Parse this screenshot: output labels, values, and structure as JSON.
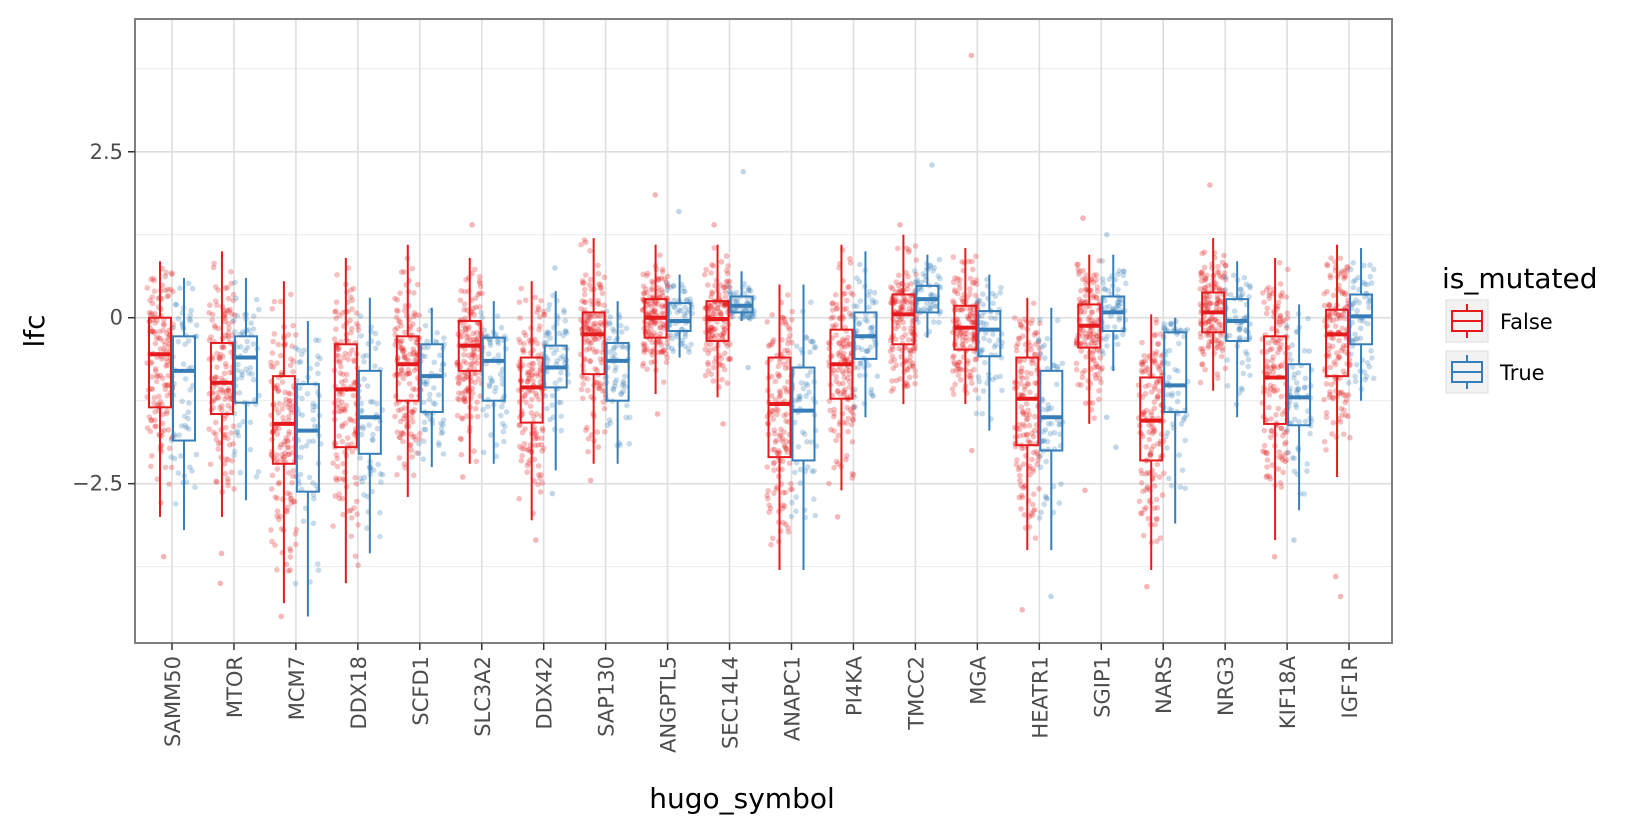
{
  "chart_data": {
    "type": "box",
    "title": "",
    "xlabel": "hugo_symbol",
    "ylabel": "lfc",
    "ylim": [
      -4.9,
      4.5
    ],
    "y_ticks": [
      -2.5,
      0,
      2.5
    ],
    "y_tick_labels": [
      "−2.5",
      "0",
      "2.5"
    ],
    "grid": true,
    "legend": {
      "title": "is_mutated",
      "position": "right"
    },
    "colors": {
      "False": "#e41a1c",
      "True": "#377eb8"
    },
    "categories": [
      "SAMM50",
      "MTOR",
      "MCM7",
      "DDX18",
      "SCFD1",
      "SLC3A2",
      "DDX42",
      "SAP130",
      "ANGPTL5",
      "SEC14L4",
      "ANAPC1",
      "PI4KA",
      "TMCC2",
      "MGA",
      "HEATR1",
      "SGIP1",
      "NARS",
      "NRG3",
      "KIF18A",
      "IGF1R"
    ],
    "series": [
      {
        "name": "False",
        "boxes": [
          {
            "min": -3.0,
            "q1": -1.35,
            "median": -0.55,
            "q3": 0.0,
            "max": 0.85,
            "outliers": [
              -3.6
            ]
          },
          {
            "min": -3.0,
            "q1": -1.45,
            "median": -0.98,
            "q3": -0.38,
            "max": 1.0,
            "outliers": [
              -3.55,
              -4.0
            ]
          },
          {
            "min": -4.3,
            "q1": -2.2,
            "median": -1.6,
            "q3": -0.88,
            "max": 0.55,
            "outliers": [
              -4.5
            ]
          },
          {
            "min": -4.0,
            "q1": -1.95,
            "median": -1.08,
            "q3": -0.4,
            "max": 0.9,
            "outliers": []
          },
          {
            "min": -2.7,
            "q1": -1.25,
            "median": -0.7,
            "q3": -0.28,
            "max": 1.1,
            "outliers": []
          },
          {
            "min": -2.2,
            "q1": -0.8,
            "median": -0.42,
            "q3": -0.05,
            "max": 0.9,
            "outliers": [
              1.4,
              -2.4
            ]
          },
          {
            "min": -3.05,
            "q1": -1.58,
            "median": -1.05,
            "q3": -0.6,
            "max": 0.55,
            "outliers": [
              -3.35
            ]
          },
          {
            "min": -2.2,
            "q1": -0.85,
            "median": -0.25,
            "q3": 0.08,
            "max": 1.2,
            "outliers": [
              -2.45
            ]
          },
          {
            "min": -1.15,
            "q1": -0.3,
            "median": 0.0,
            "q3": 0.28,
            "max": 1.1,
            "outliers": [
              1.85,
              -1.45
            ]
          },
          {
            "min": -1.2,
            "q1": -0.35,
            "median": -0.02,
            "q3": 0.25,
            "max": 1.1,
            "outliers": [
              1.4,
              -1.6
            ]
          },
          {
            "min": -3.8,
            "q1": -2.1,
            "median": -1.3,
            "q3": -0.6,
            "max": 0.5,
            "outliers": []
          },
          {
            "min": -2.6,
            "q1": -1.22,
            "median": -0.7,
            "q3": -0.18,
            "max": 1.1,
            "outliers": [
              -3.0
            ]
          },
          {
            "min": -1.3,
            "q1": -0.4,
            "median": 0.05,
            "q3": 0.35,
            "max": 1.25,
            "outliers": [
              1.4
            ]
          },
          {
            "min": -1.3,
            "q1": -0.48,
            "median": -0.15,
            "q3": 0.18,
            "max": 1.05,
            "outliers": [
              3.95,
              -2.0
            ]
          },
          {
            "min": -3.5,
            "q1": -1.92,
            "median": -1.22,
            "q3": -0.6,
            "max": 0.3,
            "outliers": [
              -4.4
            ]
          },
          {
            "min": -1.6,
            "q1": -0.45,
            "median": -0.12,
            "q3": 0.2,
            "max": 0.95,
            "outliers": [
              1.5,
              -2.6
            ]
          },
          {
            "min": -3.8,
            "q1": -2.15,
            "median": -1.55,
            "q3": -0.9,
            "max": 0.05,
            "outliers": [
              -4.05
            ]
          },
          {
            "min": -1.1,
            "q1": -0.22,
            "median": 0.08,
            "q3": 0.38,
            "max": 1.2,
            "outliers": [
              2.0
            ]
          },
          {
            "min": -3.35,
            "q1": -1.6,
            "median": -0.9,
            "q3": -0.28,
            "max": 0.9,
            "outliers": [
              -3.6
            ]
          },
          {
            "min": -2.4,
            "q1": -0.88,
            "median": -0.25,
            "q3": 0.12,
            "max": 1.1,
            "outliers": [
              -3.9,
              -4.2
            ]
          }
        ]
      },
      {
        "name": "True",
        "boxes": [
          {
            "min": -3.2,
            "q1": -1.85,
            "median": -0.8,
            "q3": -0.28,
            "max": 0.6,
            "outliers": []
          },
          {
            "min": -2.75,
            "q1": -1.28,
            "median": -0.6,
            "q3": -0.28,
            "max": 0.6,
            "outliers": []
          },
          {
            "min": -4.5,
            "q1": -2.62,
            "median": -1.7,
            "q3": -1.0,
            "max": -0.05,
            "outliers": []
          },
          {
            "min": -3.55,
            "q1": -2.05,
            "median": -1.5,
            "q3": -0.8,
            "max": 0.3,
            "outliers": []
          },
          {
            "min": -2.25,
            "q1": -1.42,
            "median": -0.88,
            "q3": -0.4,
            "max": 0.15,
            "outliers": []
          },
          {
            "min": -2.2,
            "q1": -1.25,
            "median": -0.65,
            "q3": -0.3,
            "max": 0.25,
            "outliers": []
          },
          {
            "min": -2.3,
            "q1": -1.05,
            "median": -0.75,
            "q3": -0.42,
            "max": 0.4,
            "outliers": [
              -2.65,
              0.75
            ]
          },
          {
            "min": -2.2,
            "q1": -1.25,
            "median": -0.65,
            "q3": -0.38,
            "max": 0.25,
            "outliers": []
          },
          {
            "min": -0.6,
            "q1": -0.2,
            "median": -0.05,
            "q3": 0.22,
            "max": 0.65,
            "outliers": [
              1.6
            ]
          },
          {
            "min": -0.05,
            "q1": 0.08,
            "median": 0.18,
            "q3": 0.32,
            "max": 0.7,
            "outliers": [
              2.2,
              -0.75
            ]
          },
          {
            "min": -3.8,
            "q1": -2.15,
            "median": -1.4,
            "q3": -0.75,
            "max": 0.5,
            "outliers": []
          },
          {
            "min": -1.5,
            "q1": -0.62,
            "median": -0.28,
            "q3": 0.08,
            "max": 1.0,
            "outliers": []
          },
          {
            "min": -0.3,
            "q1": 0.08,
            "median": 0.28,
            "q3": 0.48,
            "max": 0.95,
            "outliers": [
              2.3
            ]
          },
          {
            "min": -1.7,
            "q1": -0.58,
            "median": -0.18,
            "q3": 0.1,
            "max": 0.65,
            "outliers": []
          },
          {
            "min": -3.5,
            "q1": -2.0,
            "median": -1.5,
            "q3": -0.8,
            "max": 0.15,
            "outliers": [
              -4.2
            ]
          },
          {
            "min": -0.8,
            "q1": -0.2,
            "median": 0.08,
            "q3": 0.32,
            "max": 0.95,
            "outliers": [
              1.25,
              -1.5,
              -1.95
            ]
          },
          {
            "min": -3.1,
            "q1": -1.42,
            "median": -1.02,
            "q3": -0.22,
            "max": 0.0,
            "outliers": []
          },
          {
            "min": -1.5,
            "q1": -0.35,
            "median": -0.05,
            "q3": 0.28,
            "max": 0.85,
            "outliers": []
          },
          {
            "min": -2.9,
            "q1": -1.62,
            "median": -1.2,
            "q3": -0.7,
            "max": 0.2,
            "outliers": [
              -3.35
            ]
          },
          {
            "min": -1.25,
            "q1": -0.4,
            "median": 0.02,
            "q3": 0.35,
            "max": 1.05,
            "outliers": []
          }
        ]
      }
    ]
  }
}
